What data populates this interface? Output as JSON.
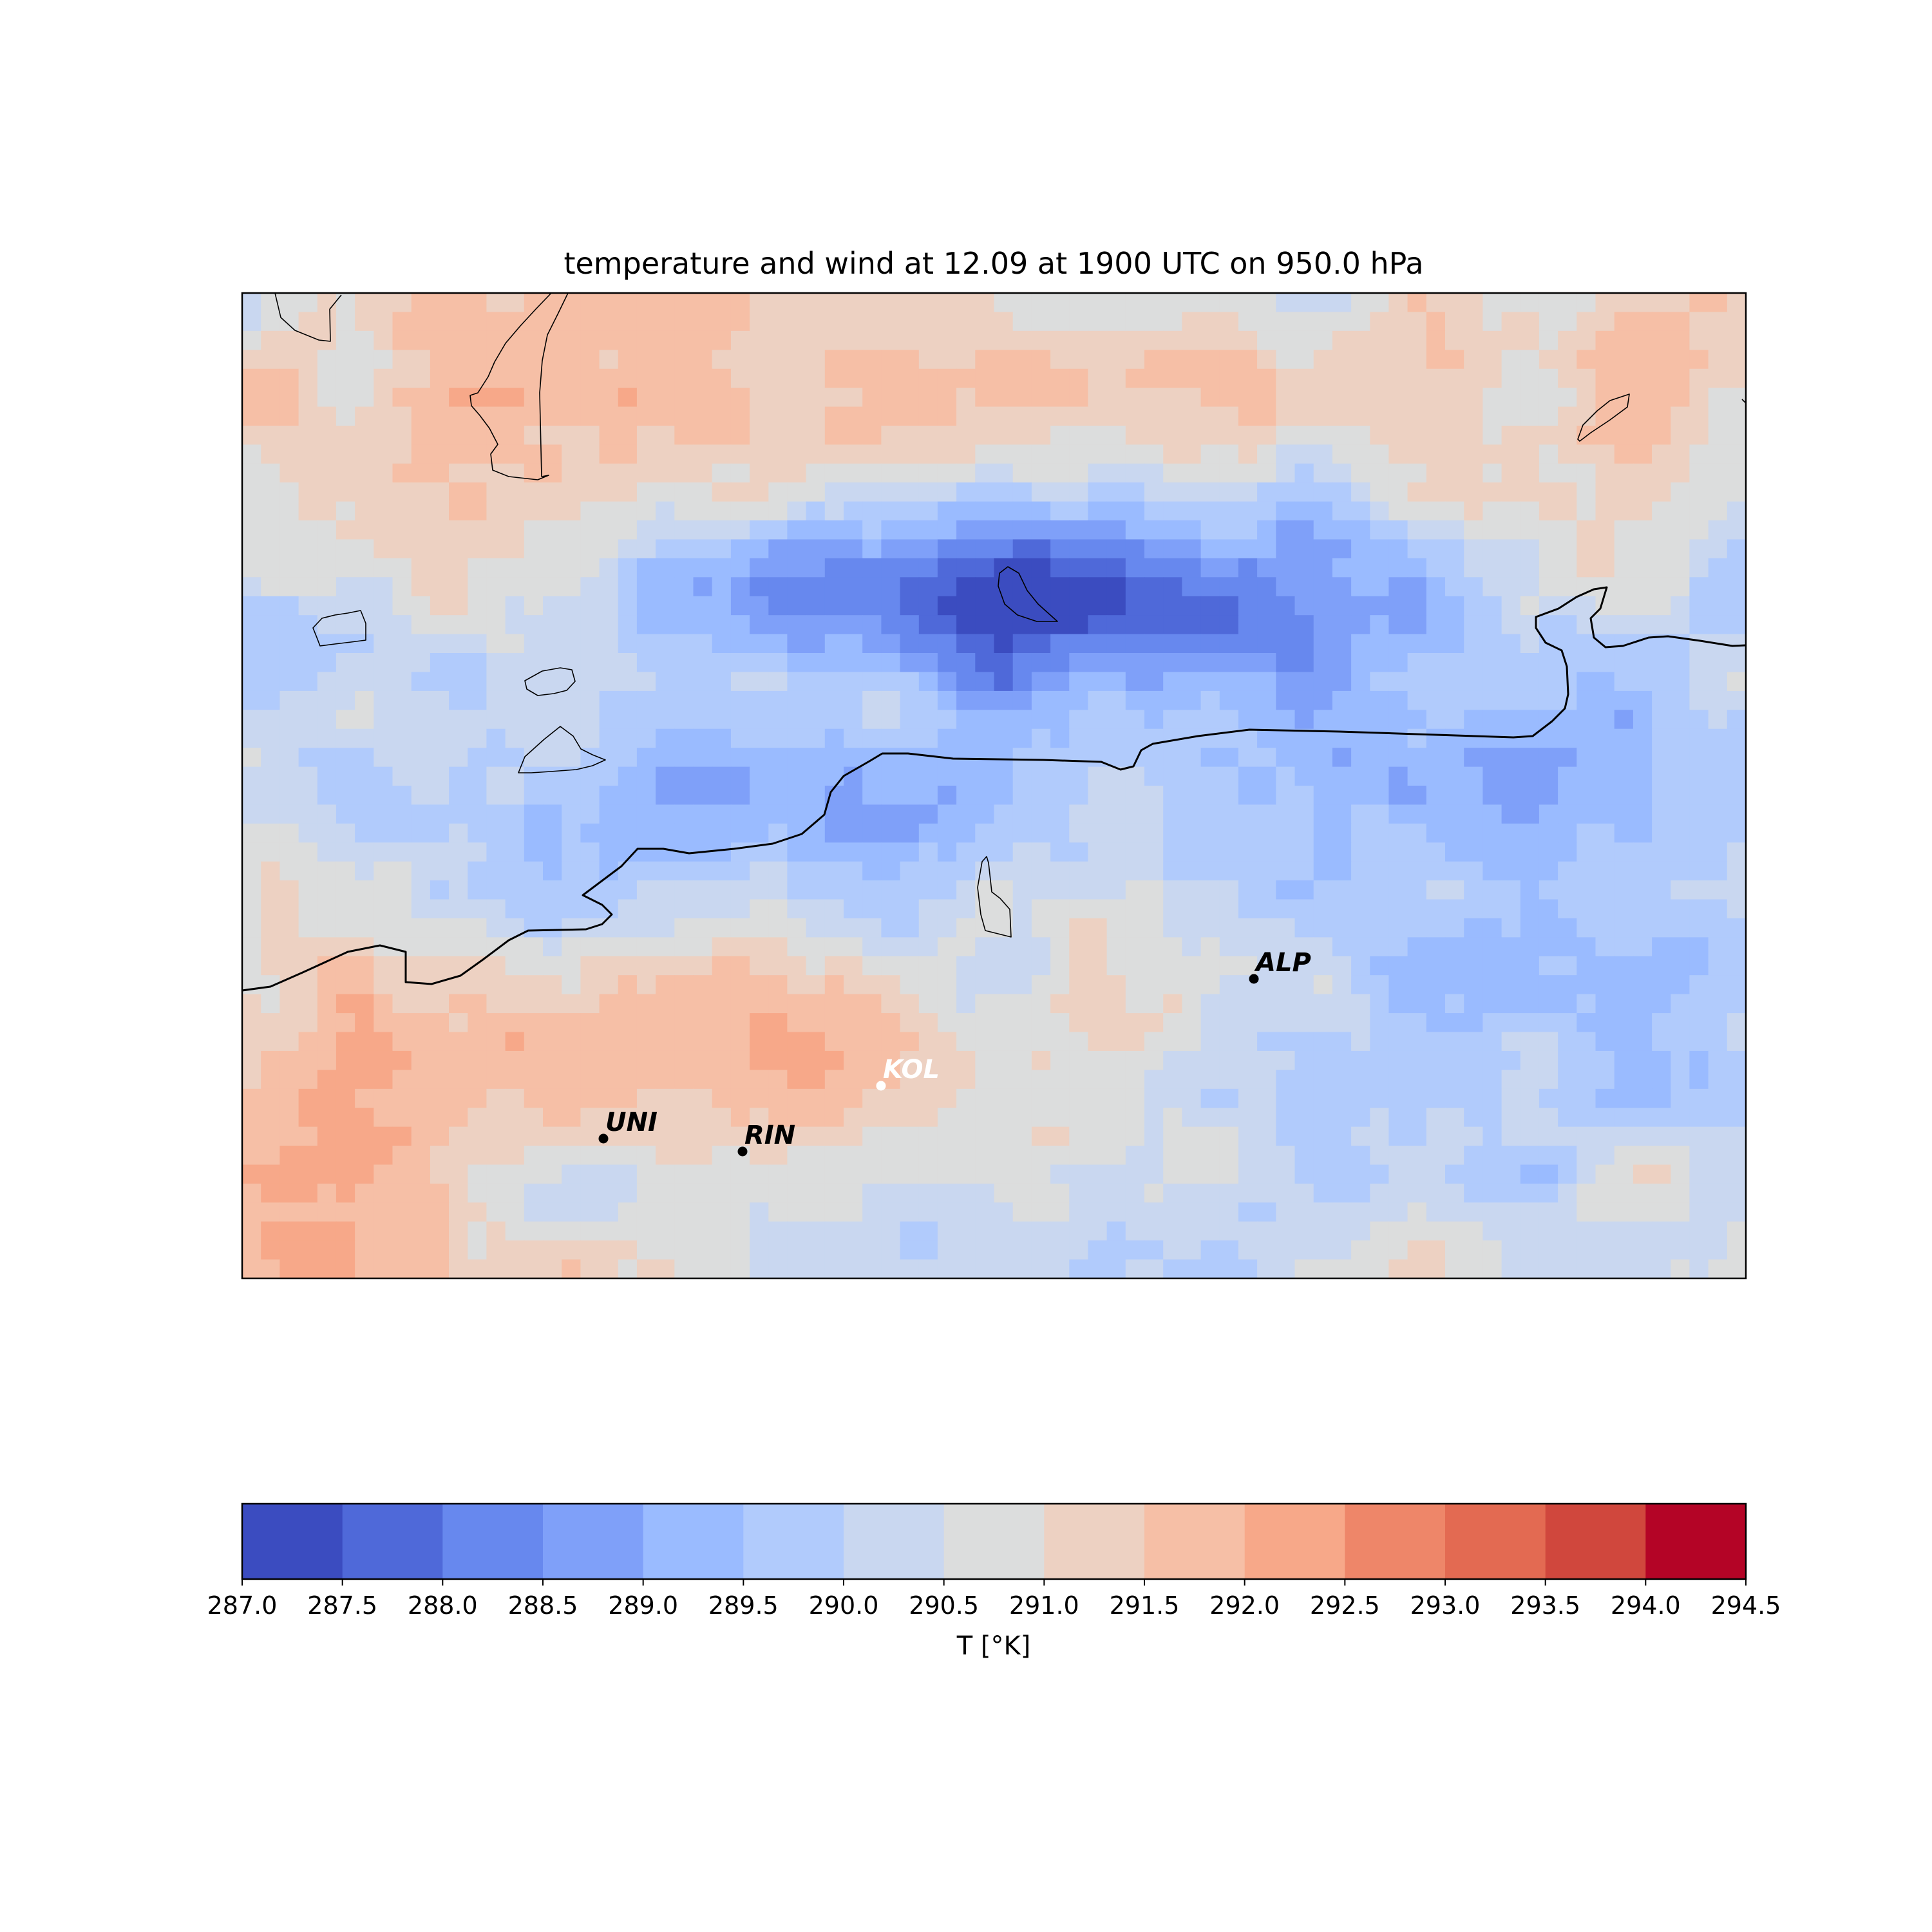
{
  "chart_data": [
    {
      "type": "heatmap",
      "title": "temperature and wind at 12.09 at 1900 UTC on 950.0 hPa",
      "xlabel": "",
      "ylabel": "",
      "grid": false,
      "color_levels": [
        287.0,
        287.5,
        288.0,
        288.5,
        289.0,
        289.5,
        290.0,
        290.5,
        291.0,
        291.5,
        292.0,
        292.5,
        293.0,
        293.5,
        294.0,
        294.5
      ],
      "colormap": [
        "#3b4cc0",
        "#4f69d9",
        "#6788ee",
        "#7fa0f9",
        "#9abbff",
        "#b1cbfc",
        "#c9d7f0",
        "#dcdddd",
        "#edd1c2",
        "#f6bfa6",
        "#f7a889",
        "#ee8669",
        "#e36a52",
        "#d0473d",
        "#b40426"
      ],
      "field_summary": "Cold band (287–289.5 K) in the north-central area; warmer (291–293 K) in north and south-west",
      "stations": [
        {
          "label": "ALP",
          "color": "#000000"
        },
        {
          "label": "KOL",
          "color": "#ffffff"
        },
        {
          "label": "UNI",
          "color": "#000000"
        },
        {
          "label": "RIN",
          "color": "#000000"
        }
      ]
    },
    {
      "type": "colorbar",
      "label": "T [°K]",
      "ticks": [
        "287.0",
        "287.5",
        "288.0",
        "288.5",
        "289.0",
        "289.5",
        "290.0",
        "290.5",
        "291.0",
        "291.5",
        "292.0",
        "292.5",
        "293.0",
        "293.5",
        "294.0",
        "294.5"
      ]
    }
  ]
}
